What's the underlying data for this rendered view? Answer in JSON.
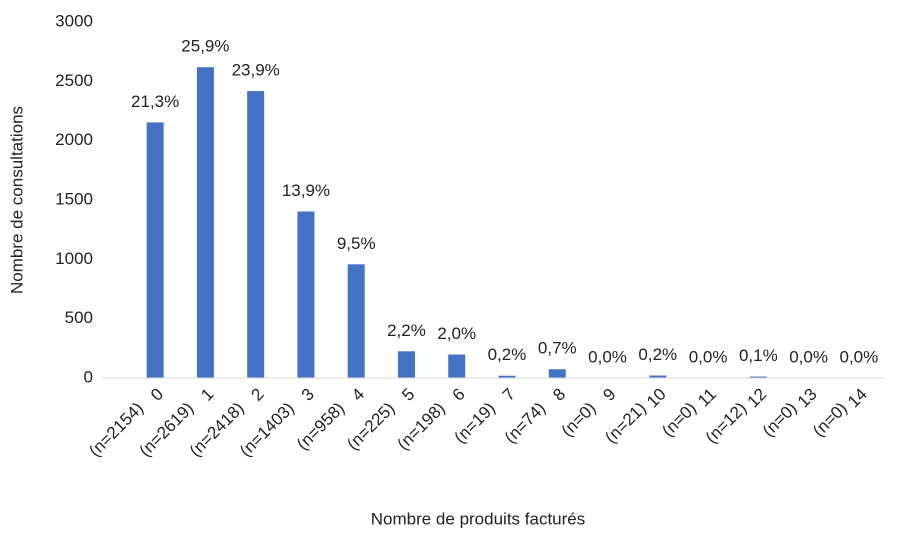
{
  "chart_data": {
    "type": "bar",
    "y_label": "Nombre de consultations",
    "x_label": "Nombre de produits facturés",
    "categories": [
      "0",
      "1",
      "2",
      "3",
      "4",
      "5",
      "6",
      "7",
      "8",
      "9",
      "10",
      "11",
      "12",
      "13",
      "14"
    ],
    "values": [
      2154,
      2619,
      2418,
      1403,
      958,
      225,
      198,
      19,
      74,
      0,
      21,
      0,
      12,
      0,
      0
    ],
    "value_labels": [
      "(n=2154)",
      "(n=2619)",
      "(n=2418)",
      "(n=1403)",
      "(n=958)",
      "(n=225)",
      "(n=198)",
      "(n=19)",
      "(n=74)",
      "(n=0)",
      "(n=21)",
      "(n=0)",
      "(n=12)",
      "(n=0)",
      "(n=0)"
    ],
    "percent_labels": [
      "21,3%",
      "25,9%",
      "23,9%",
      "13,9%",
      "9,5%",
      "2,2%",
      "2,0%",
      "0,2%",
      "0,7%",
      "0,0%",
      "0,2%",
      "0,0%",
      "0,1%",
      "0,0%",
      "0,0%"
    ],
    "color": "#4472c4",
    "ylim": [
      0,
      3000
    ],
    "yticks": [
      0,
      500,
      1000,
      1500,
      2000,
      2500,
      3000
    ],
    "grid": false
  }
}
